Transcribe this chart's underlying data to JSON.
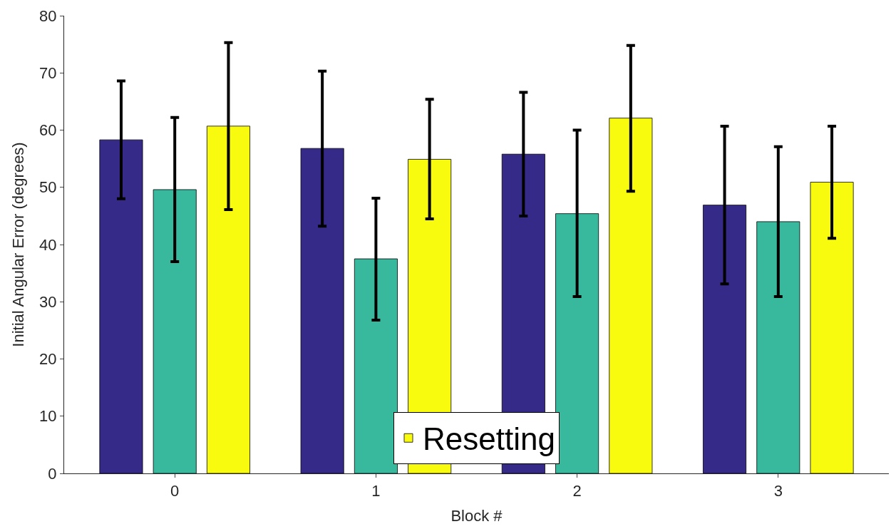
{
  "chart_data": {
    "type": "bar",
    "xlabel": "Block #",
    "ylabel": "Initial Angular Error (degrees)",
    "categories": [
      "0",
      "1",
      "2",
      "3"
    ],
    "series": [
      {
        "color": "#352a87",
        "values": [
          58.3,
          56.8,
          55.8,
          46.9
        ],
        "errors": [
          [
            48.0,
            68.6
          ],
          [
            43.2,
            70.3
          ],
          [
            45.0,
            66.6
          ],
          [
            33.1,
            60.7
          ]
        ]
      },
      {
        "color": "#38b99e",
        "values": [
          49.6,
          37.5,
          45.4,
          44.0
        ],
        "errors": [
          [
            37.0,
            62.2
          ],
          [
            26.8,
            48.1
          ],
          [
            30.9,
            60.0
          ],
          [
            30.9,
            57.1
          ]
        ]
      },
      {
        "name": "Resetting",
        "color": "#f9fb0e",
        "values": [
          60.7,
          54.9,
          62.1,
          50.9
        ],
        "errors": [
          [
            46.1,
            75.3
          ],
          [
            44.5,
            65.4
          ],
          [
            49.3,
            74.8
          ],
          [
            41.1,
            60.7
          ]
        ]
      }
    ],
    "ylim": [
      0,
      80
    ],
    "yticks": [
      0,
      10,
      20,
      30,
      40,
      50,
      60,
      70,
      80
    ],
    "legend": "bottom"
  }
}
